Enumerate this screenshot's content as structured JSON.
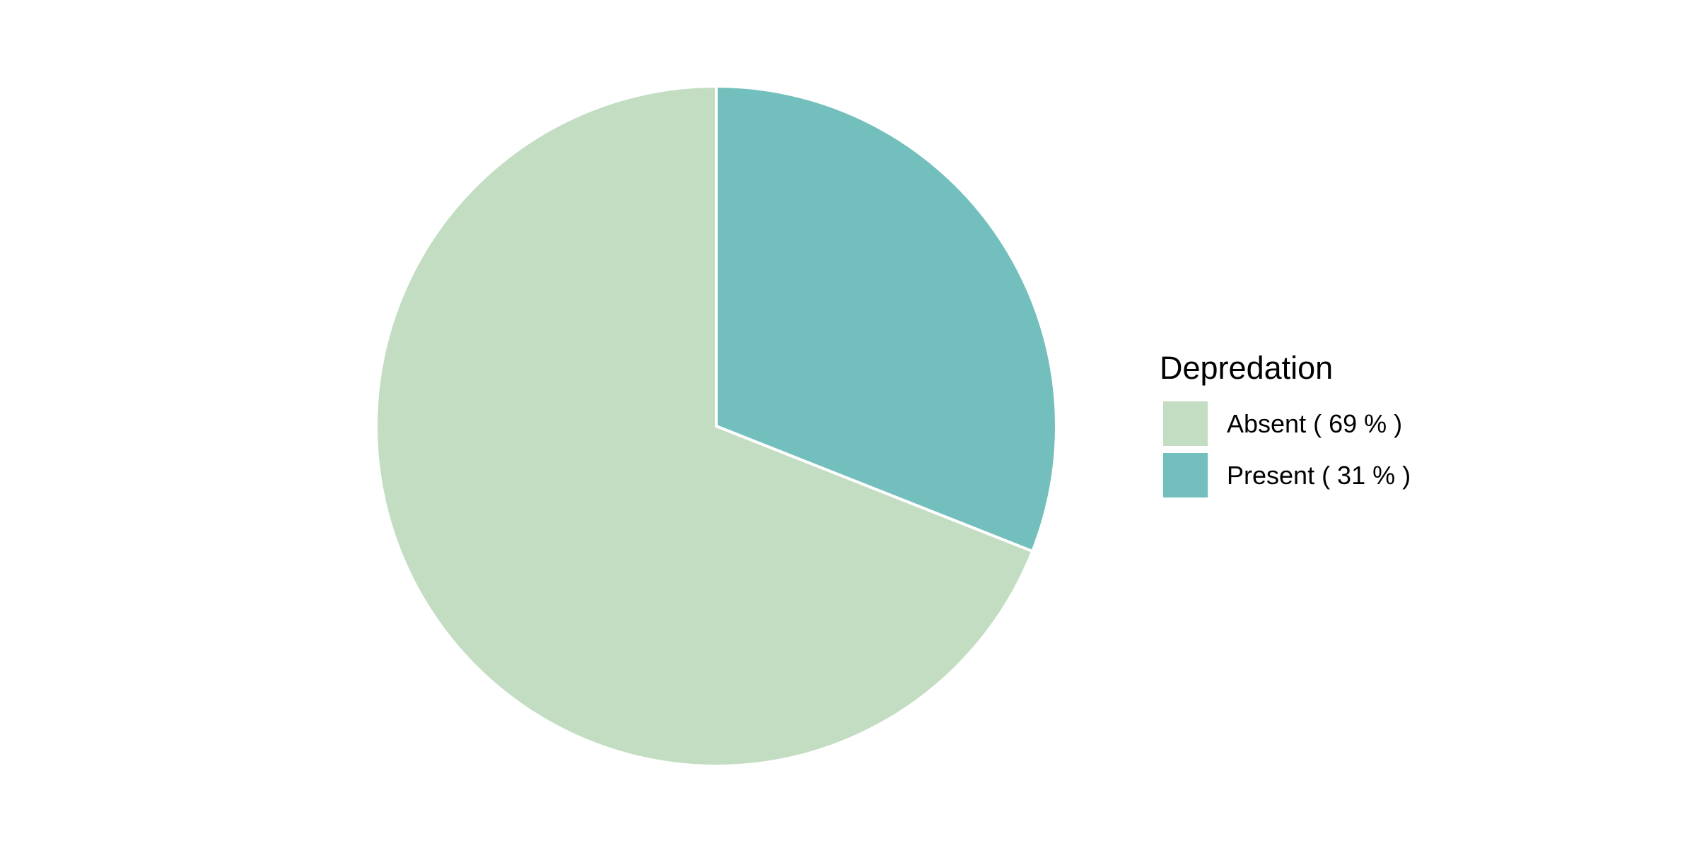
{
  "chart_data": {
    "type": "pie",
    "legend_title": "Depredation",
    "legend_position": "right",
    "start_angle": "12 o'clock",
    "direction": "counterclockwise",
    "slice_border_color": "#ffffff",
    "slices": [
      {
        "label": "Absent",
        "value": 69,
        "legend_label": "Absent ( 69 % )",
        "color": "#c3ddc2"
      },
      {
        "label": "Present",
        "value": 31,
        "legend_label": "Present ( 31 % )",
        "color": "#72bfbd"
      }
    ]
  }
}
